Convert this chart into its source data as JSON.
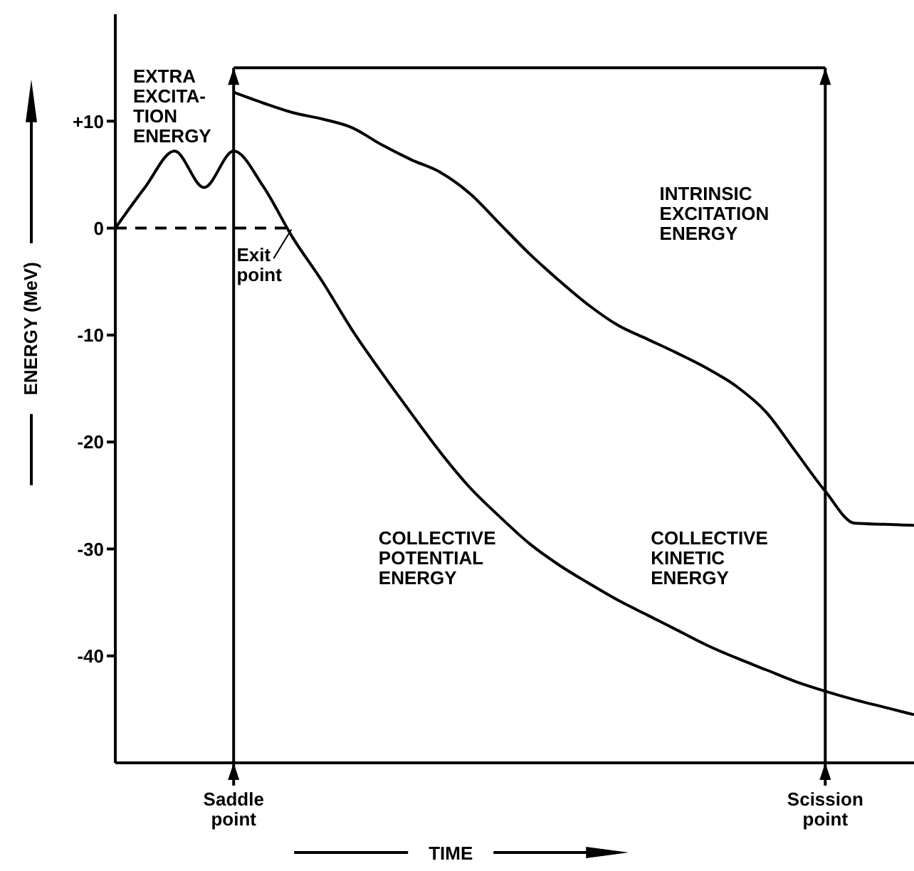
{
  "chart_data": {
    "type": "line",
    "xlabel": "TIME",
    "ylabel": "ENERGY (MeV)",
    "categories": [
      null,
      null,
      null,
      null,
      "Saddle point",
      null,
      null,
      null,
      null,
      null,
      null,
      null,
      null,
      null,
      null,
      null,
      null,
      null,
      null,
      null,
      null,
      null,
      null,
      null,
      "Scission point",
      null,
      null,
      null
    ],
    "ylim": [
      -50,
      20
    ],
    "yticks": [
      {
        "value": 10,
        "label": "+10"
      },
      0,
      -10,
      -20,
      -30,
      -40
    ],
    "marker": "none",
    "line_style": "solid",
    "series": [
      {
        "type": "line",
        "color": "#000000",
        "values": [
          0,
          3.8,
          7.2,
          3.8,
          7.2,
          3.9,
          -0.9,
          -5.0,
          -9.5,
          -13.5,
          -17.3,
          -21,
          -24.3,
          -27,
          -29.5,
          -31.5,
          -33.2,
          -34.8,
          -36.2,
          -37.6,
          -39,
          -40.2,
          -41.3,
          -42.4,
          -43.3,
          -44.1,
          -44.8,
          -45.5
        ]
      },
      {
        "type": "line",
        "color": "#000000",
        "values": [
          null,
          null,
          null,
          null,
          12.7,
          11.7,
          10.8,
          10.2,
          9.4,
          7.8,
          6.4,
          5.2,
          3.2,
          0.4,
          -2.4,
          -4.9,
          -7.2,
          -9.1,
          -10.4,
          -11.7,
          -13.1,
          -14.8,
          -17.2,
          -20.9,
          -24.6,
          -27.6,
          -27.7,
          -27.8
        ]
      },
      {
        "type": "line",
        "color": "#000000",
        "line_style": "dashed",
        "values": [
          0,
          0,
          0,
          0,
          0,
          0,
          0,
          null,
          null,
          null,
          null,
          null,
          null,
          null,
          null,
          null,
          null,
          null,
          null,
          null,
          null,
          null,
          null,
          null,
          null,
          null,
          null,
          null
        ]
      },
      {
        "type": "line",
        "color": "#000000",
        "values": [
          null,
          null,
          null,
          null,
          15,
          15,
          15,
          15,
          15,
          15,
          15,
          15,
          15,
          15,
          15,
          15,
          15,
          15,
          15,
          15,
          15,
          15,
          15,
          15,
          15,
          null,
          null,
          null
        ]
      }
    ],
    "annotations": [
      "EXTRA\nEXCITA-\nTION\nENERGY",
      "Exit\npoint",
      "INTRINSIC\nEXCITATION\nENERGY",
      "COLLECTIVE\nPOTENTIAL\nENERGY",
      "COLLECTIVE\nKINETIC\nENERGY"
    ]
  }
}
